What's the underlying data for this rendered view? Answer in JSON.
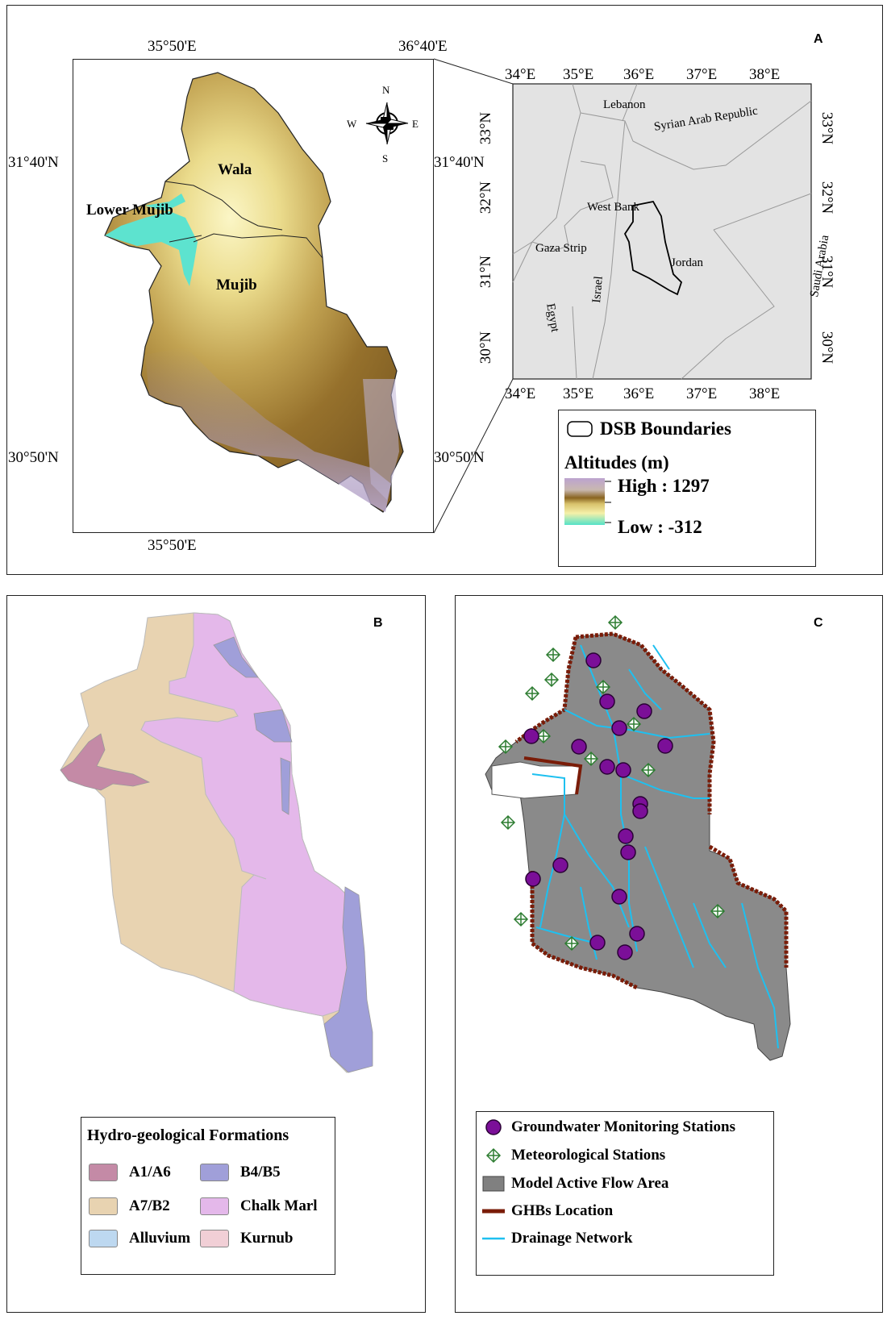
{
  "panelA": {
    "letter": "A",
    "top_ticks": [
      "35°50'E",
      "36°40'E"
    ],
    "bottom_tick": "35°50'E",
    "left_ticks": [
      "31°40'N",
      "30°50'N"
    ],
    "right_ticks": [
      "31°40'N",
      "30°50'N"
    ],
    "regions": [
      "Wala",
      "Lower Mujib",
      "Mujib"
    ],
    "compass": [
      "N",
      "E",
      "S",
      "W"
    ],
    "inset": {
      "top_lon": [
        "34°E",
        "35°E",
        "36°E",
        "37°E",
        "38°E"
      ],
      "bottom_lon": [
        "34°E",
        "35°E",
        "36°E",
        "37°E",
        "38°E"
      ],
      "lat": [
        "33°N",
        "32°N",
        "31°N",
        "30°N"
      ],
      "countries": [
        "Lebanon",
        "Syrian Arab Republic",
        "West Bank",
        "Gaza Strip",
        "Jordan",
        "Israel",
        "Egypt",
        "Saudi Arabia"
      ]
    },
    "legend": {
      "boundary_label": "DSB Boundaries",
      "altitude_title": "Altitudes (m)",
      "high": "High : 1297",
      "low": "Low : -312"
    },
    "colors": {
      "high": "#b79bc4",
      "mid": "#8a6420",
      "yellow": "#f2ecaa",
      "low": "#5de3cf"
    }
  },
  "panelB": {
    "letter": "B",
    "legend_title": "Hydro-geological Formations",
    "formations": [
      {
        "name": "A1/A6",
        "color": "#c48aa6"
      },
      {
        "name": "B4/B5",
        "color": "#a09fd9"
      },
      {
        "name": "A7/B2",
        "color": "#e8d3b1"
      },
      {
        "name": "Chalk Marl",
        "color": "#e4b8ea"
      },
      {
        "name": "Alluvium",
        "color": "#bdd8f0"
      },
      {
        "name": "Kurnub",
        "color": "#f1cfd6"
      }
    ]
  },
  "panelC": {
    "letter": "C",
    "legend": [
      {
        "label": "Groundwater Monitoring Stations",
        "icon": "purple-circle-icon"
      },
      {
        "label": "Meteorological Stations",
        "icon": "diamond-cross-icon"
      },
      {
        "label": "Model Active Flow Area",
        "icon": "gray-rect-icon"
      },
      {
        "label": "GHBs Location",
        "icon": "brown-line-icon"
      },
      {
        "label": "Drainage Network",
        "icon": "cyan-line-icon"
      }
    ],
    "colors": {
      "gw": "#7b0f98",
      "met": "#2e7d32",
      "area": "#808080",
      "ghb": "#7a1c08",
      "drain": "#1ec0f0"
    }
  }
}
